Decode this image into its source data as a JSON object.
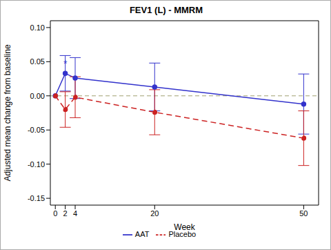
{
  "chart_data": {
    "type": "line",
    "title": "FEV1 (L) - MMRM",
    "x_label": "Week",
    "y_label": "Adjusted mean change from baseline",
    "x": [
      0,
      2,
      4,
      20,
      50
    ],
    "xlim": [
      -1,
      53
    ],
    "xticks": [
      0,
      2,
      4,
      20,
      50
    ],
    "ylim": [
      -0.16,
      0.11
    ],
    "yticks": [
      {
        "value": -0.15,
        "label": "-0.15"
      },
      {
        "value": -0.1,
        "label": "-0.10"
      },
      {
        "value": -0.05,
        "label": "-0.05"
      },
      {
        "value": 0,
        "label": "0.00"
      },
      {
        "value": 0.05,
        "label": "0.05"
      },
      {
        "value": 0.1,
        "label": "0.10"
      }
    ],
    "reference_y": 0,
    "legend": "bottom",
    "grid": false,
    "series": [
      {
        "name": "AAT",
        "color": "#3333cc",
        "marker": "circle",
        "line_style": "solid",
        "values": [
          0,
          0.033,
          0.026,
          0.013,
          -0.012
        ],
        "ci_lower": [
          null,
          0.007,
          -0.004,
          -0.022,
          -0.056
        ],
        "ci_upper": [
          null,
          0.059,
          0.056,
          0.048,
          0.032
        ]
      },
      {
        "name": "Placebo",
        "color": "#cc2222",
        "marker": "circle",
        "line_style": "dashed",
        "values": [
          0,
          -0.02,
          -0.002,
          -0.024,
          -0.062
        ],
        "ci_lower": [
          null,
          -0.046,
          -0.032,
          -0.057,
          -0.102
        ],
        "ci_upper": [
          null,
          0.006,
          0.028,
          0.009,
          -0.022
        ]
      }
    ],
    "annotations": [
      {
        "text": "*",
        "x": 2,
        "y": 0.047,
        "color": "#3333cc"
      }
    ]
  }
}
